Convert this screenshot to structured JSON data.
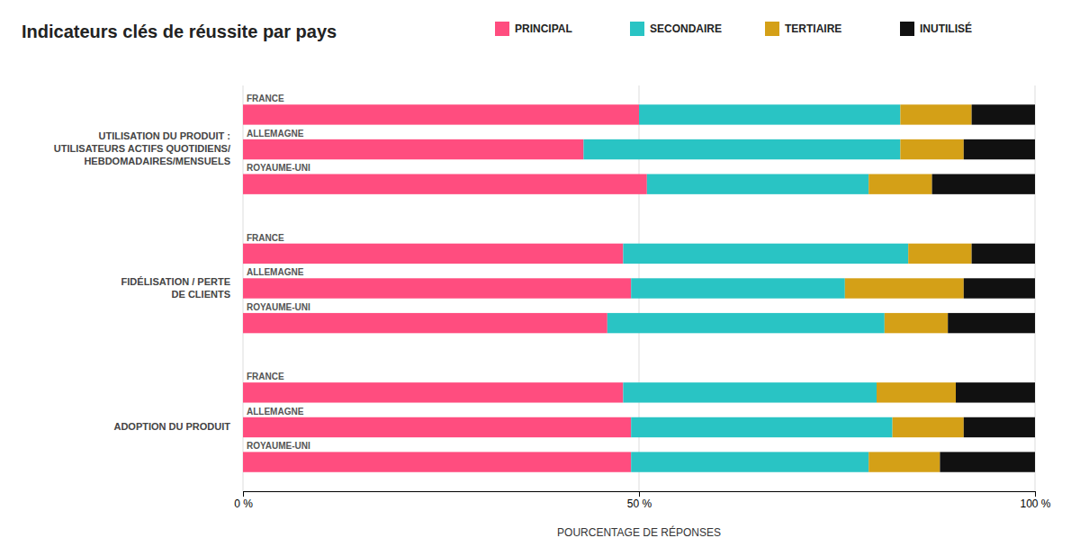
{
  "chart_data": {
    "type": "bar",
    "orientation": "horizontal",
    "stacked": true,
    "title": "Indicateurs clés de réussite par pays",
    "xlabel": "POURCENTAGE DE RÉPONSES",
    "xlim": [
      0,
      100
    ],
    "xticks": [
      {
        "value": 0,
        "label": "0 %"
      },
      {
        "value": 50,
        "label": "50 %"
      },
      {
        "value": 100,
        "label": "100 %"
      }
    ],
    "grid": true,
    "legend": "top",
    "groups": [
      "UTILISATION DU PRODUIT :\nUTILISATEURS ACTIFS QUOTIDIENS/\nHEBDOMADAIRES/MENSUELS",
      "FIDÉLISATION / PERTE\nDE CLIENTS",
      "ADOPTION DU PRODUIT"
    ],
    "categories": [
      "FRANCE",
      "ALLEMAGNE",
      "ROYAUME-UNI",
      "FRANCE",
      "ALLEMAGNE",
      "ROYAUME-UNI",
      "FRANCE",
      "ALLEMAGNE",
      "ROYAUME-UNI"
    ],
    "series": [
      {
        "name": "PRINCIPAL",
        "color": "#FF4D7F",
        "values": [
          50,
          43,
          51,
          48,
          49,
          46,
          48,
          49,
          49
        ]
      },
      {
        "name": "SECONDAIRE",
        "color": "#29C4C4",
        "values": [
          33,
          40,
          28,
          36,
          27,
          35,
          32,
          33,
          30
        ]
      },
      {
        "name": "TERTIAIRE",
        "color": "#D4A017",
        "values": [
          9,
          8,
          8,
          8,
          15,
          8,
          10,
          9,
          9
        ]
      },
      {
        "name": "INUTILISÉ",
        "color": "#111111",
        "values": [
          8,
          9,
          13,
          8,
          9,
          11,
          10,
          9,
          12
        ]
      }
    ]
  }
}
